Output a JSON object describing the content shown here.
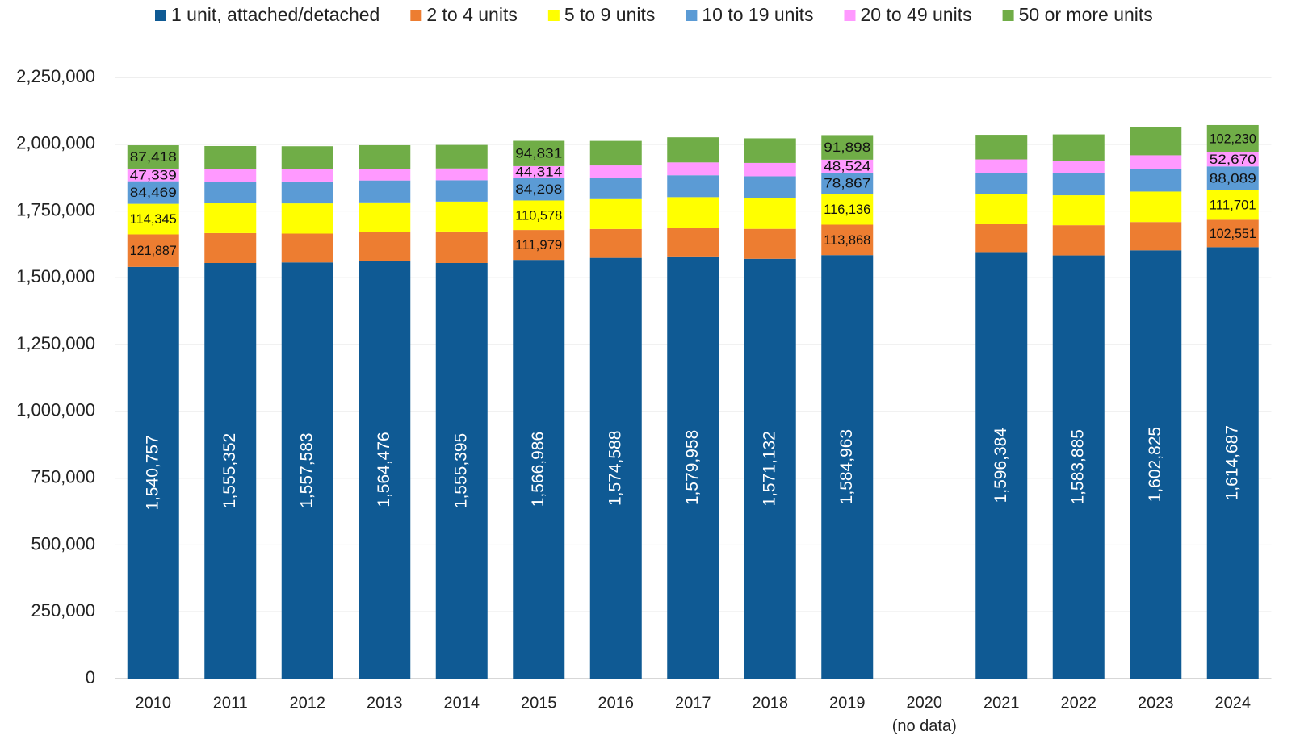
{
  "chart_data": {
    "type": "stacked_bar",
    "categories": [
      "2010",
      "2011",
      "2012",
      "2013",
      "2014",
      "2015",
      "2016",
      "2017",
      "2018",
      "2019",
      "2020\n(no data)",
      "2021",
      "2022",
      "2023",
      "2024"
    ],
    "series": [
      {
        "name": "1 unit, attached/detached",
        "color": "#0f5a94",
        "values": [
          1540757,
          1555352,
          1557583,
          1564476,
          1555395,
          1566986,
          1574588,
          1579958,
          1571132,
          1584963,
          null,
          1596384,
          1583885,
          1602825,
          1614687
        ],
        "value_labels": [
          "1,540,757",
          "1,555,352",
          "1,557,583",
          "1,564,476",
          "1,555,395",
          "1,566,986",
          "1,574,588",
          "1,579,958",
          "1,571,132",
          "1,584,963",
          null,
          "1,596,384",
          "1,583,885",
          "1,602,825",
          "1,614,687"
        ]
      },
      {
        "name": "2 to 4 units",
        "color": "#ed7d31",
        "values": [
          121887,
          112000,
          108000,
          108000,
          118000,
          111979,
          108000,
          108000,
          112000,
          113868,
          null,
          104000,
          113000,
          106000,
          102551
        ],
        "value_labels": [
          "121,887",
          null,
          null,
          null,
          null,
          "111,979",
          null,
          null,
          null,
          "113,868",
          null,
          null,
          null,
          null,
          "102,551"
        ]
      },
      {
        "name": "5 to 9 units",
        "color": "#ffff00",
        "values": [
          114345,
          112000,
          113000,
          110000,
          112000,
          110578,
          112000,
          114000,
          115000,
          116136,
          null,
          113000,
          112000,
          114000,
          111701
        ],
        "value_labels": [
          "114,345",
          null,
          null,
          null,
          null,
          "110,578",
          null,
          null,
          null,
          "116,136",
          null,
          null,
          null,
          null,
          "111,701"
        ]
      },
      {
        "name": "10 to 19 units",
        "color": "#5b9bd5",
        "values": [
          84469,
          80000,
          82000,
          82000,
          80000,
          84208,
          80000,
          82000,
          82000,
          78867,
          null,
          80000,
          82000,
          84000,
          88089
        ],
        "value_labels": [
          "84,469",
          null,
          null,
          null,
          null,
          "84,208",
          null,
          null,
          null,
          "78,867",
          null,
          null,
          null,
          null,
          "88,089"
        ]
      },
      {
        "name": "20 to 49 units",
        "color": "#ff99ff",
        "values": [
          47339,
          48000,
          46000,
          44000,
          44000,
          44314,
          46000,
          48000,
          50000,
          48524,
          null,
          50000,
          48000,
          52000,
          52670
        ],
        "value_labels": [
          "47,339",
          null,
          null,
          null,
          null,
          "44,314",
          null,
          null,
          null,
          "48,524",
          null,
          null,
          null,
          null,
          "52,670"
        ]
      },
      {
        "name": "50 or more units",
        "color": "#70ad47",
        "values": [
          87418,
          86000,
          86000,
          88000,
          88000,
          94831,
          92000,
          94000,
          92000,
          91898,
          null,
          92000,
          98000,
          104000,
          102230
        ],
        "value_labels": [
          "87,418",
          null,
          null,
          null,
          null,
          "94,831",
          null,
          null,
          null,
          "91,898",
          null,
          null,
          null,
          null,
          "102,230"
        ]
      }
    ],
    "ylim": [
      0,
      2250000
    ],
    "yticks": [
      0,
      {
        "value": 250000,
        "label": "250,000"
      },
      {
        "value": 500000,
        "label": "500,000"
      },
      {
        "value": 750000,
        "label": "750,000"
      },
      {
        "value": 1000000,
        "label": "1,000,000"
      },
      {
        "value": 1250000,
        "label": "1,250,000"
      },
      {
        "value": 1500000,
        "label": "1,500,000"
      },
      {
        "value": 1750000,
        "label": "1,750,000"
      },
      {
        "value": 2000000,
        "label": "2,000,000"
      },
      {
        "value": 2250000,
        "label": "2,250,000"
      }
    ],
    "grid": true,
    "legend": "top"
  }
}
